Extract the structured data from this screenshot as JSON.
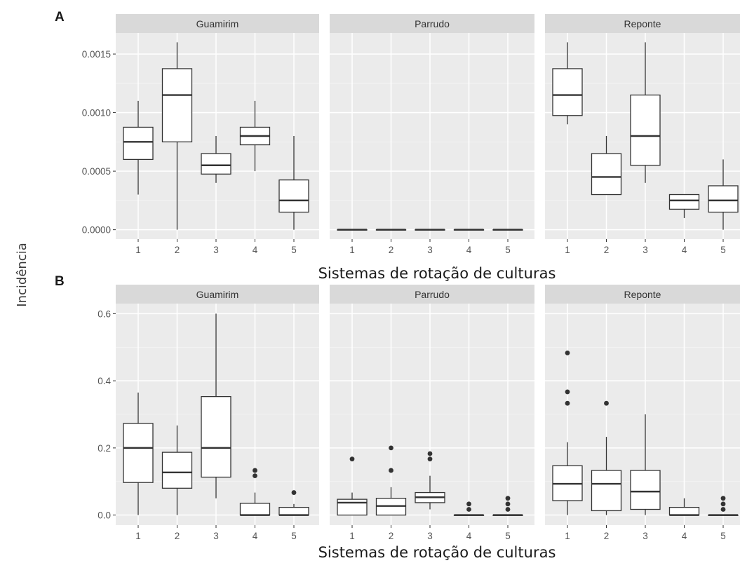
{
  "ylabel": "Incidência",
  "chart_data": [
    {
      "type": "boxplot",
      "tag": "A",
      "xlabel": "Sistemas de rotação de culturas",
      "ylabel": "Incidência",
      "ylim": [
        -8e-05,
        0.00168
      ],
      "yticks": [
        0,
        0.0005,
        0.001,
        0.0015
      ],
      "ytick_labels": [
        "0.0000",
        "0.0005",
        "0.0010",
        "0.0015"
      ],
      "categories": [
        "1",
        "2",
        "3",
        "4",
        "5"
      ],
      "panels": [
        {
          "name": "Guamirim",
          "boxes": [
            {
              "x": "1",
              "lower": 0.0003,
              "q1": 0.0006,
              "median": 0.00075,
              "q3": 0.000875,
              "upper": 0.0011,
              "outliers": []
            },
            {
              "x": "2",
              "lower": 0.0,
              "q1": 0.00075,
              "median": 0.00115,
              "q3": 0.001375,
              "upper": 0.0016,
              "outliers": []
            },
            {
              "x": "3",
              "lower": 0.0004,
              "q1": 0.000475,
              "median": 0.00055,
              "q3": 0.00065,
              "upper": 0.0008,
              "outliers": []
            },
            {
              "x": "4",
              "lower": 0.0005,
              "q1": 0.000725,
              "median": 0.0008,
              "q3": 0.000875,
              "upper": 0.0011,
              "outliers": []
            },
            {
              "x": "5",
              "lower": 0.0,
              "q1": 0.00015,
              "median": 0.00025,
              "q3": 0.000425,
              "upper": 0.0008,
              "outliers": []
            }
          ]
        },
        {
          "name": "Parrudo",
          "boxes": [
            {
              "x": "1",
              "lower": 0.0,
              "q1": 0.0,
              "median": 0.0,
              "q3": 0.0,
              "upper": 0.0,
              "outliers": []
            },
            {
              "x": "2",
              "lower": 0.0,
              "q1": 0.0,
              "median": 0.0,
              "q3": 0.0,
              "upper": 0.0,
              "outliers": []
            },
            {
              "x": "3",
              "lower": 0.0,
              "q1": 0.0,
              "median": 0.0,
              "q3": 0.0,
              "upper": 0.0,
              "outliers": []
            },
            {
              "x": "4",
              "lower": 0.0,
              "q1": 0.0,
              "median": 0.0,
              "q3": 0.0,
              "upper": 0.0,
              "outliers": []
            },
            {
              "x": "5",
              "lower": 0.0,
              "q1": 0.0,
              "median": 0.0,
              "q3": 0.0,
              "upper": 0.0,
              "outliers": []
            }
          ]
        },
        {
          "name": "Reponte",
          "boxes": [
            {
              "x": "1",
              "lower": 0.0009,
              "q1": 0.000975,
              "median": 0.00115,
              "q3": 0.001375,
              "upper": 0.0016,
              "outliers": []
            },
            {
              "x": "2",
              "lower": 0.0003,
              "q1": 0.0003,
              "median": 0.00045,
              "q3": 0.00065,
              "upper": 0.0008,
              "outliers": []
            },
            {
              "x": "3",
              "lower": 0.0004,
              "q1": 0.00055,
              "median": 0.0008,
              "q3": 0.00115,
              "upper": 0.0016,
              "outliers": []
            },
            {
              "x": "4",
              "lower": 0.0001,
              "q1": 0.000175,
              "median": 0.00025,
              "q3": 0.0003,
              "upper": 0.0003,
              "outliers": []
            },
            {
              "x": "5",
              "lower": 0.0,
              "q1": 0.00015,
              "median": 0.00025,
              "q3": 0.000375,
              "upper": 0.0006,
              "outliers": []
            }
          ]
        }
      ]
    },
    {
      "type": "boxplot",
      "tag": "B",
      "xlabel": "Sistemas de rotação de culturas",
      "ylabel": "Incidência",
      "ylim": [
        -0.03,
        0.63
      ],
      "yticks": [
        0,
        0.2,
        0.4,
        0.6
      ],
      "ytick_labels": [
        "0.0",
        "0.2",
        "0.4",
        "0.6"
      ],
      "categories": [
        "1",
        "2",
        "3",
        "4",
        "5"
      ],
      "panels": [
        {
          "name": "Guamirim",
          "boxes": [
            {
              "x": "1",
              "lower": 0.0,
              "q1": 0.097,
              "median": 0.2,
              "q3": 0.273,
              "upper": 0.365,
              "outliers": []
            },
            {
              "x": "2",
              "lower": 0.0,
              "q1": 0.08,
              "median": 0.127,
              "q3": 0.187,
              "upper": 0.267,
              "outliers": []
            },
            {
              "x": "3",
              "lower": 0.05,
              "q1": 0.113,
              "median": 0.2,
              "q3": 0.353,
              "upper": 0.6,
              "outliers": []
            },
            {
              "x": "4",
              "lower": 0.0,
              "q1": 0.0,
              "median": 0.0,
              "q3": 0.035,
              "upper": 0.067,
              "outliers": [
                0.117,
                0.133
              ]
            },
            {
              "x": "5",
              "lower": 0.0,
              "q1": 0.0,
              "median": 0.0,
              "q3": 0.023,
              "upper": 0.033,
              "outliers": [
                0.067
              ]
            }
          ]
        },
        {
          "name": "Parrudo",
          "boxes": [
            {
              "x": "1",
              "lower": 0.0,
              "q1": 0.0,
              "median": 0.037,
              "q3": 0.047,
              "upper": 0.067,
              "outliers": [
                0.167
              ]
            },
            {
              "x": "2",
              "lower": 0.0,
              "q1": 0.0,
              "median": 0.027,
              "q3": 0.05,
              "upper": 0.083,
              "outliers": [
                0.133,
                0.2
              ]
            },
            {
              "x": "3",
              "lower": 0.017,
              "q1": 0.037,
              "median": 0.053,
              "q3": 0.067,
              "upper": 0.117,
              "outliers": [
                0.167,
                0.183
              ]
            },
            {
              "x": "4",
              "lower": 0.0,
              "q1": 0.0,
              "median": 0.0,
              "q3": 0.0,
              "upper": 0.0,
              "outliers": [
                0.017,
                0.033
              ]
            },
            {
              "x": "5",
              "lower": 0.0,
              "q1": 0.0,
              "median": 0.0,
              "q3": 0.0,
              "upper": 0.0,
              "outliers": [
                0.017,
                0.033,
                0.05
              ]
            }
          ]
        },
        {
          "name": "Reponte",
          "boxes": [
            {
              "x": "1",
              "lower": 0.0,
              "q1": 0.043,
              "median": 0.093,
              "q3": 0.147,
              "upper": 0.217,
              "outliers": [
                0.333,
                0.367,
                0.483
              ]
            },
            {
              "x": "2",
              "lower": 0.0,
              "q1": 0.013,
              "median": 0.093,
              "q3": 0.133,
              "upper": 0.233,
              "outliers": [
                0.333
              ]
            },
            {
              "x": "3",
              "lower": 0.0,
              "q1": 0.017,
              "median": 0.07,
              "q3": 0.133,
              "upper": 0.3,
              "outliers": []
            },
            {
              "x": "4",
              "lower": 0.0,
              "q1": 0.0,
              "median": 0.0,
              "q3": 0.023,
              "upper": 0.05,
              "outliers": []
            },
            {
              "x": "5",
              "lower": 0.0,
              "q1": 0.0,
              "median": 0.0,
              "q3": 0.0,
              "upper": 0.0,
              "outliers": [
                0.017,
                0.033,
                0.05
              ]
            }
          ]
        }
      ]
    }
  ]
}
